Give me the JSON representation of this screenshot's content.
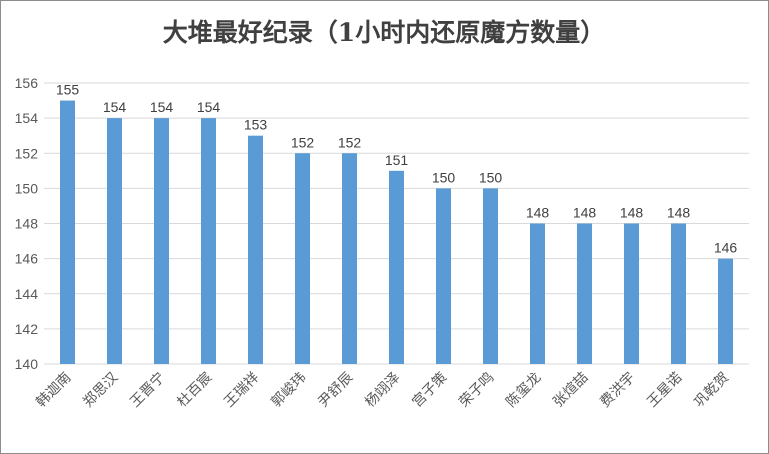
{
  "chart_data": {
    "type": "bar",
    "title": "大堆最好纪录（1小时内还原魔方数量）",
    "categories": [
      "韩迦南",
      "郑思汉",
      "王晋宁",
      "杜百宸",
      "王瑞祥",
      "郭峻玮",
      "尹舒辰",
      "杨翊泽",
      "宫子策",
      "荣子鸣",
      "陈玺龙",
      "张煊喆",
      "费洪宇",
      "王星诺",
      "巩乾贺"
    ],
    "values": [
      155,
      154,
      154,
      154,
      153,
      152,
      152,
      151,
      150,
      150,
      148,
      148,
      148,
      148,
      146
    ],
    "ylim": [
      140,
      156
    ],
    "yticks": [
      140,
      142,
      144,
      146,
      148,
      150,
      152,
      154,
      156
    ],
    "grid": true,
    "legend": "none",
    "bar_color": "#5b9bd5",
    "xlabel": "",
    "ylabel": ""
  }
}
